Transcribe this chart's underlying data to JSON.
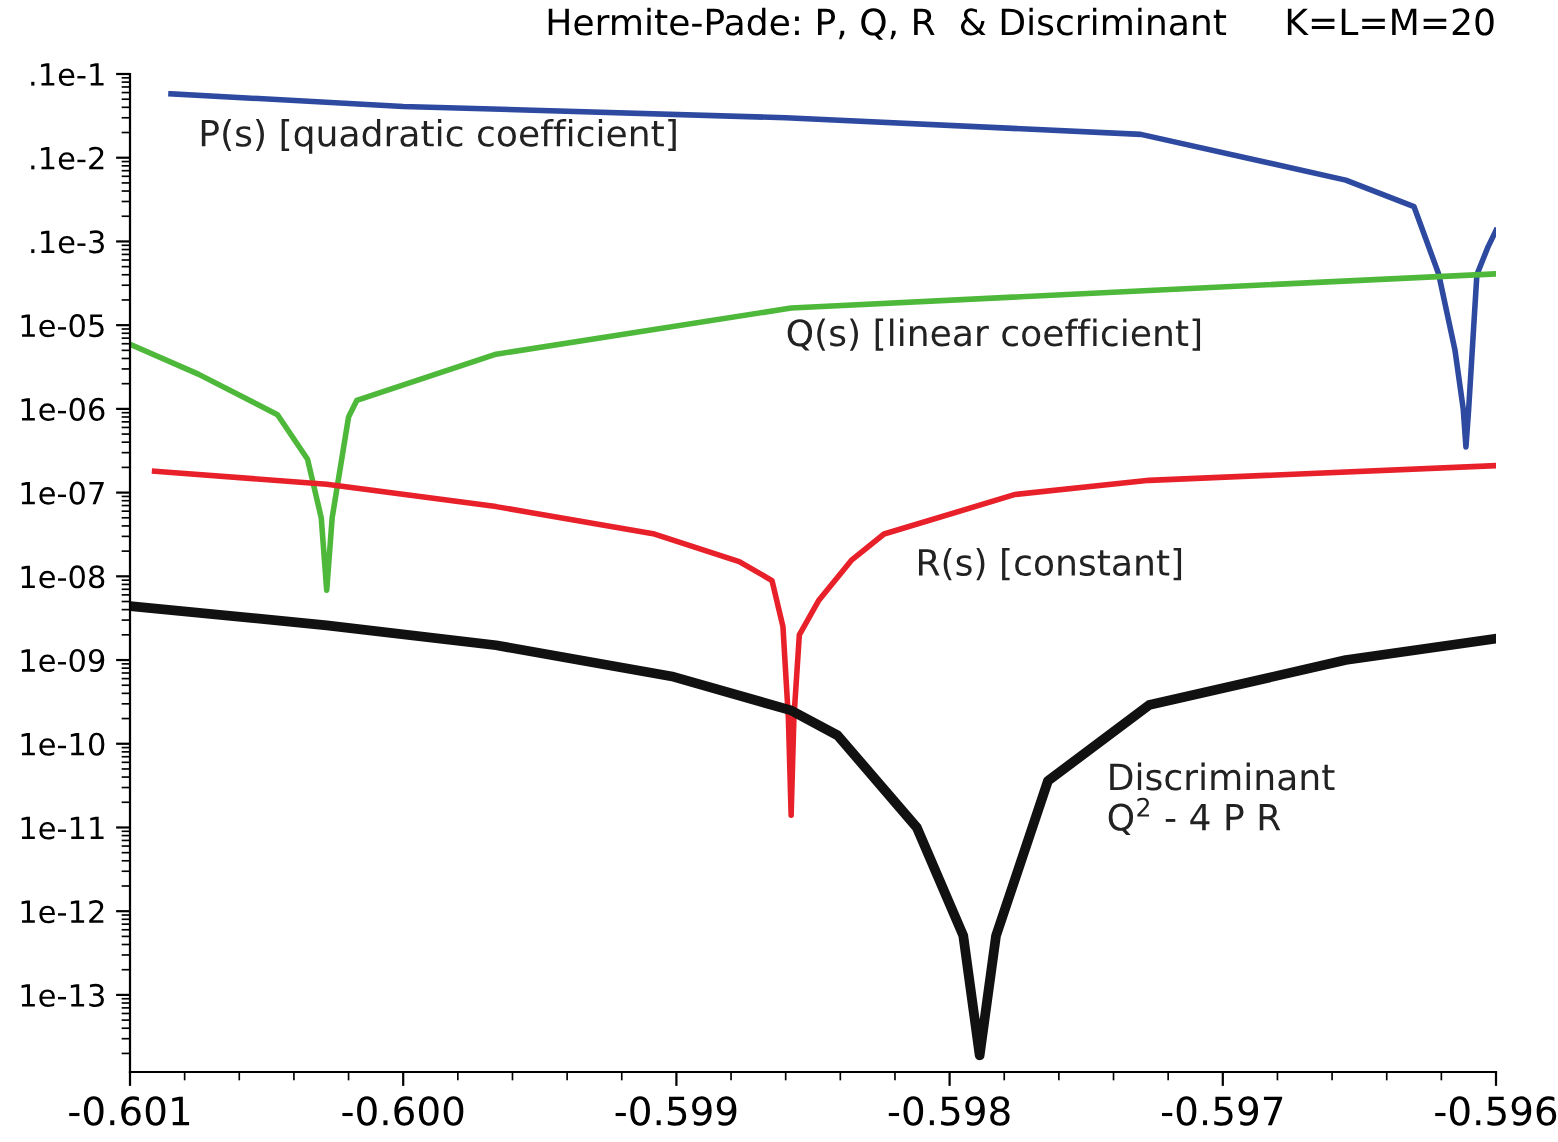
{
  "chart_data": {
    "type": "line",
    "title": "Hermite-Pade: P, Q, R  & Discriminant     K=L=M=20",
    "log": "y",
    "grid": false,
    "legend": false,
    "marker": "none",
    "line_style": "solid",
    "xlim": [
      -0.601,
      -0.596
    ],
    "xticks": [
      {
        "value": -0.601,
        "label": "-0.601"
      },
      {
        "value": -0.6,
        "label": "-0.600"
      },
      {
        "value": -0.599,
        "label": "-0.599"
      },
      {
        "value": -0.598,
        "label": "-0.598"
      },
      {
        "value": -0.597,
        "label": "-0.597"
      },
      {
        "value": -0.596,
        "label": "-0.596"
      }
    ],
    "ylim": [
      1.2e-14,
      0.01
    ],
    "yticks": [
      {
        "value": 0.01,
        "label": ".1e-1"
      },
      {
        "value": 0.001,
        "label": ".1e-2"
      },
      {
        "value": 0.0001,
        "label": ".1e-3"
      },
      {
        "value": 1e-05,
        "label": "1e-05"
      },
      {
        "value": 1e-06,
        "label": "1e-06"
      },
      {
        "value": 1e-07,
        "label": "1e-07"
      },
      {
        "value": 1e-08,
        "label": "1e-08"
      },
      {
        "value": 1e-09,
        "label": "1e-09"
      },
      {
        "value": 1e-10,
        "label": "1e-10"
      },
      {
        "value": 1e-11,
        "label": "1e-11"
      },
      {
        "value": 1e-12,
        "label": "1e-12"
      },
      {
        "value": 1e-13,
        "label": "1e-13"
      }
    ],
    "series": [
      {
        "name": "P(s) [quadratic coefficient]",
        "color": "#2e4aa0",
        "x": [
          -0.60085,
          -0.6,
          -0.5986,
          -0.5973,
          -0.59655,
          -0.5963,
          -0.59621,
          -0.59615,
          -0.59612,
          -0.59611,
          -0.5961,
          -0.59607,
          -0.59603,
          -0.596
        ],
        "values": [
          0.0058,
          0.0041,
          0.003,
          0.0019,
          0.00054,
          0.00026,
          4.1e-05,
          5e-06,
          1e-06,
          3.5e-07,
          1e-06,
          4e-05,
          8.5e-05,
          0.000135
        ]
      },
      {
        "name": "Q(s) [linear coefficient]",
        "color": "#4db83a",
        "x": [
          -0.601,
          -0.60075,
          -0.60046,
          -0.60035,
          -0.6003,
          -0.60028,
          -0.60026,
          -0.6002,
          -0.60017,
          -0.59966,
          -0.59858,
          -0.59727,
          -0.596
        ],
        "values": [
          5.9e-06,
          2.6e-06,
          8.5e-07,
          2.5e-07,
          5e-08,
          6.8e-09,
          5e-08,
          8e-07,
          1.26e-06,
          4.5e-06,
          1.6e-05,
          2.6e-05,
          4.1e-05
        ]
      },
      {
        "name": "R(s) [constant]",
        "color": "#e8202a",
        "x": [
          -0.60091,
          -0.60028,
          -0.59966,
          -0.59908,
          -0.59877,
          -0.59865,
          -0.59861,
          -0.59859,
          -0.59858,
          -0.59857,
          -0.59855,
          -0.59848,
          -0.59836,
          -0.59824,
          -0.59776,
          -0.59727,
          -0.596
        ],
        "values": [
          1.8e-07,
          1.26e-07,
          6.8e-08,
          3.2e-08,
          1.5e-08,
          8.9e-09,
          2.5e-09,
          2e-10,
          1.4e-11,
          2e-10,
          2e-09,
          5.1e-09,
          1.55e-08,
          3.2e-08,
          9.5e-08,
          1.4e-07,
          2.1e-07
        ]
      },
      {
        "name": "Discriminant\nQ$^{2}$ - 4 P R",
        "color": "#111111",
        "x": [
          -0.601,
          -0.60028,
          -0.59966,
          -0.59901,
          -0.59858,
          -0.59841,
          -0.59812,
          -0.59795,
          -0.59789,
          -0.59783,
          -0.59764,
          -0.59727,
          -0.59655,
          -0.596
        ],
        "values": [
          4.4e-09,
          2.6e-09,
          1.5e-09,
          6.3e-10,
          2.5e-10,
          1.26e-10,
          1e-11,
          5.1e-13,
          1.9e-14,
          5.1e-13,
          3.6e-11,
          2.9e-10,
          1e-09,
          1.8e-09
        ]
      }
    ]
  }
}
